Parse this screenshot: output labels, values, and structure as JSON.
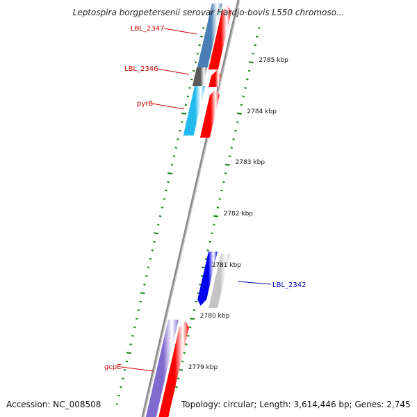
{
  "title": "Leptospira borgpetersenii serovar Hardjo-bovis L550 chromoso...",
  "footer": {
    "accession": "Accession: NC_008508",
    "topology": "Topology: circular; Length: 3,614,446 bp; Genes: 2,745"
  },
  "colors": {
    "tick": "#1a7f1a",
    "backbone": "#8c8c8c",
    "label_red": "#cc0000",
    "label_blue": "#0000aa",
    "gene_red": "#ff0000",
    "gene_steelblue": "#4a7fb5",
    "gene_darkgray": "#5a5a5a",
    "gene_cyan": "#22bbee",
    "gene_blue": "#0000ee",
    "gene_lightgray": "#c4c4c4",
    "gene_purple": "#7f6acd"
  },
  "scale_labels": [
    "2785 kbp",
    "2784 kbp",
    "2783 kbp",
    "2782 kbp",
    "2781 kbp",
    "2780 kbp",
    "2779 kbp"
  ],
  "gene_labels": [
    {
      "name": "LBL_2347",
      "color": "red"
    },
    {
      "name": "LBL_2346",
      "color": "red"
    },
    {
      "name": "pyrB",
      "color": "red"
    },
    {
      "name": "LBL_2342",
      "color": "blue"
    },
    {
      "name": "gcpE",
      "color": "red"
    }
  ]
}
